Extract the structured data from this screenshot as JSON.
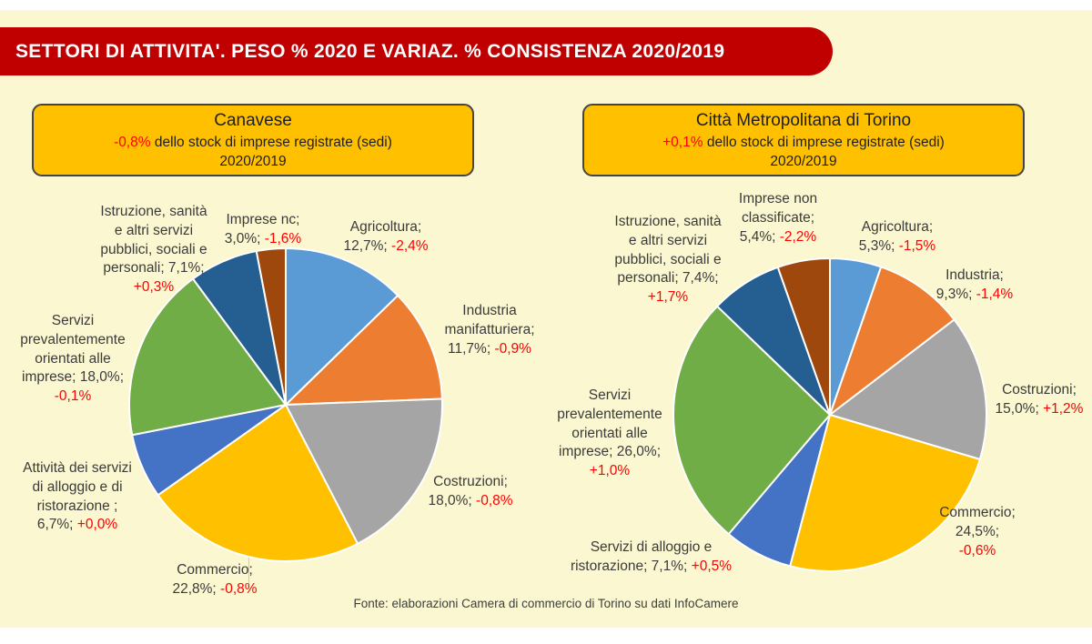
{
  "banner": {
    "title": "SETTORI DI ATTIVITA'. PESO % 2020 E VARIAZ. % CONSISTENZA 2020/2019",
    "bg_color": "#C00000"
  },
  "footer": {
    "source": "Fonte: elaborazioni Camera di commercio di Torino su dati InfoCamere"
  },
  "charts": [
    {
      "header": {
        "title": "Canavese",
        "delta": "-0,8%",
        "subtitle": "dello stock di imprese registrate (sedi)",
        "period": "2020/2019"
      },
      "labels": [
        {
          "text": "Agricoltura;\n12,7%; ",
          "delta": "-2,4%"
        },
        {
          "text": "Industria\nmanifatturiera;\n11,7%; ",
          "delta": "-0,9%"
        },
        {
          "text": "Costruzioni;\n18,0%; ",
          "delta": "-0,8%"
        },
        {
          "text": "Commercio;\n22,8%; ",
          "delta": "-0,8%"
        },
        {
          "text": "Attività dei servizi\ndi alloggio e di\nristorazione ;\n6,7%; ",
          "delta": "+0,0%"
        },
        {
          "text": "Servizi\nprevalentemente\norientati alle\nimprese; 18,0%;\n",
          "delta": "-0,1%"
        },
        {
          "text": "Istruzione, sanità\ne altri servizi\npubblici, sociali e\npersonali; 7,1%;\n",
          "delta": "+0,3%"
        },
        {
          "text": "Imprese nc;\n3,0%; ",
          "delta": "-1,6%"
        }
      ]
    },
    {
      "header": {
        "title": "Città Metropolitana di Torino",
        "delta": "+0,1%",
        "subtitle": "dello stock di imprese registrate (sedi)",
        "period": "2020/2019"
      },
      "labels": [
        {
          "text": "Agricoltura;\n5,3%; ",
          "delta": "-1,5%"
        },
        {
          "text": "Industria;\n9,3%; ",
          "delta": "-1,4%"
        },
        {
          "text": "Costruzioni;\n15,0%; ",
          "delta": "+1,2%"
        },
        {
          "text": "Commercio;\n24,5%;\n",
          "delta": "-0,6%"
        },
        {
          "text": "Servizi di alloggio e\nristorazione; 7,1%; ",
          "delta": "+0,5%"
        },
        {
          "text": "Servizi\nprevalentemente\norientati alle\nimprese; 26,0%;\n",
          "delta": "+1,0%"
        },
        {
          "text": "Istruzione, sanità\ne altri servizi\npubblici, sociali e\npersonali; 7,4%;\n",
          "delta": "+1,7%"
        },
        {
          "text": "Imprese non\nclassificate;\n5,4%; ",
          "delta": "-2,2%"
        }
      ]
    }
  ],
  "chart_data": [
    {
      "type": "pie",
      "title": "Canavese",
      "subtitle": "-0,8% dello stock di imprese registrate (sedi) 2020/2019",
      "categories": [
        "Agricoltura",
        "Industria manifatturiera",
        "Costruzioni",
        "Commercio",
        "Attività dei servizi di alloggio e di ristorazione",
        "Servizi prevalentemente orientati alle imprese",
        "Istruzione, sanità e altri servizi pubblici, sociali e personali",
        "Imprese nc"
      ],
      "ids": [
        "agricoltura",
        "industria-manifatturiera",
        "costruzioni",
        "commercio",
        "alloggio-ristorazione",
        "servizi-imprese",
        "istruzione-sanita",
        "imprese-nc"
      ],
      "values": [
        12.7,
        11.7,
        18.0,
        22.8,
        6.7,
        18.0,
        7.1,
        3.0
      ],
      "deltas_pct": [
        "-2,4%",
        "-0,9%",
        "-0,8%",
        "-0,8%",
        "+0,0%",
        "-0,1%",
        "+0,3%",
        "-1,6%"
      ],
      "colors": [
        "#5B9BD5",
        "#ED7D31",
        "#A5A5A5",
        "#FFC000",
        "#4472C4",
        "#70AD47",
        "#255E91",
        "#9E480E"
      ],
      "start_angle_deg": 0,
      "direction": "clockwise",
      "legend": "none"
    },
    {
      "type": "pie",
      "title": "Città Metropolitana di Torino",
      "subtitle": "+0,1% dello stock di imprese registrate (sedi) 2020/2019",
      "categories": [
        "Agricoltura",
        "Industria",
        "Costruzioni",
        "Commercio",
        "Servizi di alloggio e ristorazione",
        "Servizi prevalentemente orientati alle imprese",
        "Istruzione, sanità e altri servizi pubblici, sociali e personali",
        "Imprese non classificate"
      ],
      "ids": [
        "agricoltura",
        "industria",
        "costruzioni",
        "commercio",
        "alloggio-ristorazione",
        "servizi-imprese",
        "istruzione-sanita",
        "imprese-non-classificate"
      ],
      "values": [
        5.3,
        9.3,
        15.0,
        24.5,
        7.1,
        26.0,
        7.4,
        5.4
      ],
      "deltas_pct": [
        "-1,5%",
        "-1,4%",
        "+1,2%",
        "-0,6%",
        "+0,5%",
        "+1,0%",
        "+1,7%",
        "-2,2%"
      ],
      "colors": [
        "#5B9BD5",
        "#ED7D31",
        "#A5A5A5",
        "#FFC000",
        "#4472C4",
        "#70AD47",
        "#255E91",
        "#9E480E"
      ],
      "start_angle_deg": 0,
      "direction": "clockwise",
      "legend": "none"
    }
  ]
}
